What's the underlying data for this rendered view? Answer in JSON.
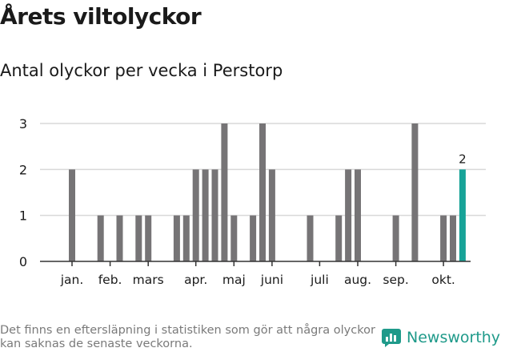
{
  "title": "Årets viltolyckor",
  "subtitle": "Antal olyckor per vecka i Perstorp",
  "footnote": "Det finns en eftersläpning i statistiken som gör att några olyckor kan saknas de senaste veckorna.",
  "brand": {
    "name": "Newsworthy",
    "icon": "newsworthy-logo-icon",
    "color": "#1f9a8a"
  },
  "colors": {
    "bar": "#767476",
    "highlight": "#17a398",
    "grid": "#d9d9d9",
    "axis": "#333333"
  },
  "chart_data": {
    "type": "bar",
    "title": "Antal olyckor per vecka i Perstorp",
    "xlabel": "",
    "ylabel": "",
    "ylim": [
      0,
      3
    ],
    "yticks": [
      0,
      1,
      2,
      3
    ],
    "grid": true,
    "legend": "none",
    "x_tick_labels": [
      "jan.",
      "feb.",
      "mars",
      "apr.",
      "maj",
      "juni",
      "juli",
      "aug.",
      "sep.",
      "okt."
    ],
    "x_tick_weeks": [
      2,
      6,
      10,
      15,
      19,
      23,
      28,
      32,
      36,
      41
    ],
    "weeks": [
      1,
      2,
      3,
      4,
      5,
      6,
      7,
      8,
      9,
      10,
      11,
      12,
      13,
      14,
      15,
      16,
      17,
      18,
      19,
      20,
      21,
      22,
      23,
      24,
      25,
      26,
      27,
      28,
      29,
      30,
      31,
      32,
      33,
      34,
      35,
      36,
      37,
      38,
      39,
      40,
      41,
      42,
      43
    ],
    "values": [
      0,
      2,
      0,
      0,
      1,
      0,
      1,
      0,
      1,
      1,
      0,
      0,
      1,
      1,
      2,
      2,
      2,
      3,
      1,
      0,
      1,
      3,
      2,
      0,
      0,
      0,
      1,
      0,
      0,
      1,
      2,
      2,
      0,
      0,
      0,
      1,
      0,
      3,
      0,
      0,
      1,
      1,
      2
    ],
    "highlight": {
      "week": 43,
      "value": 2,
      "label": "2"
    }
  }
}
